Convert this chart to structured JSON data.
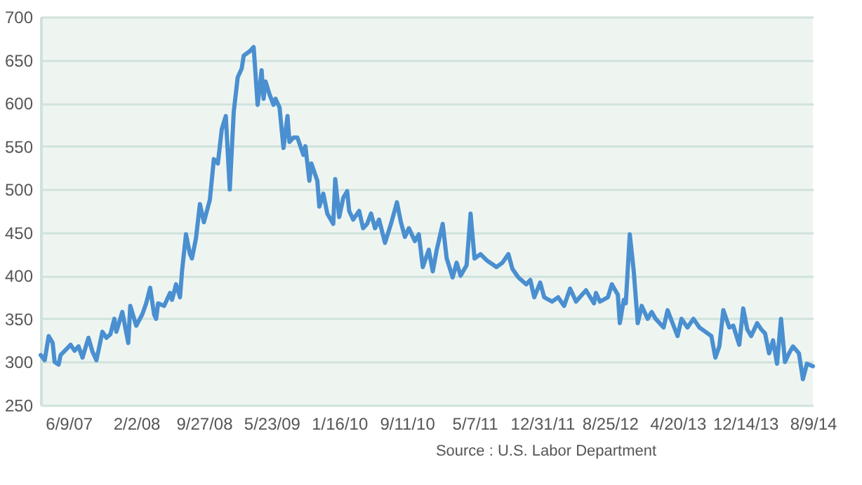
{
  "chart_data": {
    "type": "line",
    "annotations": [
      "Source : U.S. Labor Department"
    ],
    "x": [
      "2007-03-03",
      "2007-03-17",
      "2007-03-31",
      "2007-04-14",
      "2007-04-21",
      "2007-05-05",
      "2007-05-12",
      "2007-06-02",
      "2007-06-16",
      "2007-06-30",
      "2007-07-14",
      "2007-07-28",
      "2007-08-18",
      "2007-09-01",
      "2007-09-15",
      "2007-10-06",
      "2007-10-20",
      "2007-11-03",
      "2007-11-17",
      "2007-11-24",
      "2007-12-15",
      "2008-01-05",
      "2008-01-12",
      "2008-02-02",
      "2008-02-23",
      "2008-03-08",
      "2008-03-22",
      "2008-04-05",
      "2008-04-12",
      "2008-04-19",
      "2008-05-10",
      "2008-05-31",
      "2008-06-07",
      "2008-06-21",
      "2008-07-05",
      "2008-07-12",
      "2008-07-26",
      "2008-08-09",
      "2008-08-16",
      "2008-08-30",
      "2008-09-13",
      "2008-09-27",
      "2008-10-18",
      "2008-11-01",
      "2008-11-15",
      "2008-11-29",
      "2008-12-13",
      "2008-12-27",
      "2009-01-10",
      "2009-01-24",
      "2009-02-07",
      "2009-02-14",
      "2009-03-07",
      "2009-03-21",
      "2009-04-04",
      "2009-04-18",
      "2009-04-25",
      "2009-05-02",
      "2009-05-16",
      "2009-05-30",
      "2009-06-06",
      "2009-06-20",
      "2009-07-04",
      "2009-07-18",
      "2009-07-25",
      "2009-08-08",
      "2009-08-22",
      "2009-09-12",
      "2009-09-19",
      "2009-10-03",
      "2009-10-10",
      "2009-10-31",
      "2009-11-07",
      "2009-11-21",
      "2009-12-05",
      "2009-12-26",
      "2010-01-02",
      "2010-01-16",
      "2010-01-30",
      "2010-02-13",
      "2010-02-20",
      "2010-03-06",
      "2010-03-27",
      "2010-04-10",
      "2010-04-24",
      "2010-05-08",
      "2010-05-22",
      "2010-06-05",
      "2010-06-26",
      "2010-07-17",
      "2010-08-07",
      "2010-08-21",
      "2010-09-04",
      "2010-09-18",
      "2010-10-09",
      "2010-10-23",
      "2010-11-06",
      "2010-11-27",
      "2010-12-11",
      "2010-12-25",
      "2011-01-15",
      "2011-01-29",
      "2011-02-19",
      "2011-03-05",
      "2011-03-19",
      "2011-04-09",
      "2011-04-23",
      "2011-05-07",
      "2011-05-28",
      "2011-06-18",
      "2011-07-23",
      "2011-08-13",
      "2011-09-03",
      "2011-09-17",
      "2011-10-08",
      "2011-11-05",
      "2011-11-19",
      "2011-12-03",
      "2011-12-24",
      "2012-01-07",
      "2012-02-04",
      "2012-02-25",
      "2012-03-17",
      "2012-04-07",
      "2012-04-28",
      "2012-05-19",
      "2012-06-02",
      "2012-06-30",
      "2012-07-07",
      "2012-07-21",
      "2012-08-18",
      "2012-09-01",
      "2012-09-22",
      "2012-09-29",
      "2012-10-13",
      "2012-10-20",
      "2012-11-03",
      "2012-11-17",
      "2012-12-01",
      "2012-12-15",
      "2013-01-05",
      "2013-01-19",
      "2013-02-02",
      "2013-03-02",
      "2013-03-16",
      "2013-04-06",
      "2013-04-20",
      "2013-05-04",
      "2013-05-25",
      "2013-06-15",
      "2013-07-06",
      "2013-07-27",
      "2013-08-17",
      "2013-08-31",
      "2013-09-14",
      "2013-09-28",
      "2013-10-19",
      "2013-11-02",
      "2013-11-23",
      "2013-12-07",
      "2013-12-21",
      "2014-01-04",
      "2014-01-25",
      "2014-02-08",
      "2014-02-22",
      "2014-03-08",
      "2014-03-22",
      "2014-04-05",
      "2014-04-19",
      "2014-05-03",
      "2014-05-17",
      "2014-05-31",
      "2014-06-21",
      "2014-07-05",
      "2014-07-19",
      "2014-08-09"
    ],
    "series": [
      {
        "color": "#4a8fd0",
        "values": [
          308,
          302,
          330,
          322,
          300,
          297,
          308,
          315,
          320,
          313,
          318,
          305,
          328,
          312,
          302,
          335,
          328,
          332,
          350,
          335,
          358,
          322,
          365,
          342,
          355,
          368,
          386,
          355,
          350,
          368,
          365,
          380,
          372,
          390,
          375,
          405,
          448,
          425,
          420,
          443,
          483,
          462,
          488,
          535,
          530,
          570,
          585,
          500,
          590,
          630,
          640,
          655,
          660,
          665,
          598,
          638,
          605,
          625,
          610,
          598,
          605,
          595,
          548,
          585,
          555,
          560,
          560,
          540,
          550,
          510,
          530,
          510,
          480,
          495,
          472,
          460,
          512,
          468,
          490,
          498,
          475,
          465,
          475,
          455,
          460,
          472,
          455,
          465,
          438,
          460,
          485,
          462,
          445,
          455,
          440,
          448,
          410,
          430,
          405,
          430,
          460,
          420,
          398,
          415,
          400,
          412,
          472,
          420,
          425,
          418,
          410,
          415,
          425,
          408,
          398,
          390,
          395,
          375,
          392,
          375,
          370,
          375,
          365,
          385,
          370,
          378,
          383,
          368,
          380,
          370,
          375,
          390,
          378,
          345,
          372,
          368,
          448,
          405,
          345,
          365,
          350,
          358,
          350,
          340,
          360,
          342,
          330,
          350,
          340,
          350,
          340,
          335,
          330,
          305,
          318,
          360,
          340,
          342,
          320,
          362,
          338,
          330,
          345,
          338,
          333,
          310,
          325,
          298,
          350,
          300,
          310,
          318,
          310,
          280,
          298,
          295
        ]
      }
    ],
    "xlim": [
      "2007-03-03",
      "2014-08-09"
    ],
    "xticks": [
      {
        "value": "2007-06-09",
        "label": "6/9/07"
      },
      {
        "value": "2008-02-02",
        "label": "2/2/08"
      },
      {
        "value": "2008-09-27",
        "label": "9/27/08"
      },
      {
        "value": "2009-05-23",
        "label": "5/23/09"
      },
      {
        "value": "2010-01-16",
        "label": "1/16/10"
      },
      {
        "value": "2010-09-11",
        "label": "9/11/10"
      },
      {
        "value": "2011-05-07",
        "label": "5/7/11"
      },
      {
        "value": "2011-12-31",
        "label": "12/31/11"
      },
      {
        "value": "2012-08-25",
        "label": "8/25/12"
      },
      {
        "value": "2013-04-20",
        "label": "4/20/13"
      },
      {
        "value": "2013-12-14",
        "label": "12/14/13"
      },
      {
        "value": "2014-08-09",
        "label": "8/9/14"
      }
    ],
    "ylim": [
      250,
      700
    ],
    "yticks": [
      250,
      300,
      350,
      400,
      450,
      500,
      550,
      600,
      650,
      700
    ],
    "grid": "y"
  }
}
